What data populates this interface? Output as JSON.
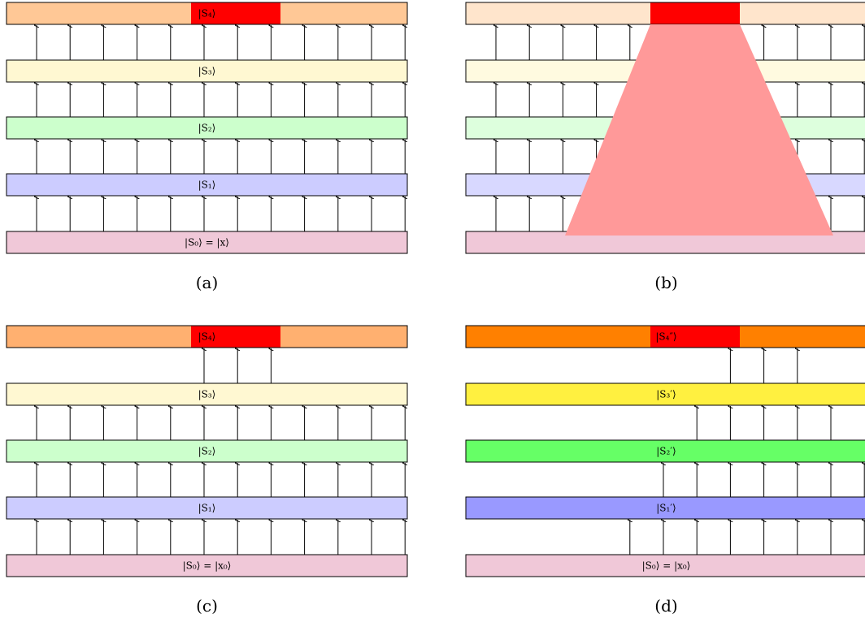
{
  "panels": [
    {
      "id": "a",
      "caption": "(a)",
      "layers": [
        {
          "label": "|S₄⟩",
          "fill": "#FFC896",
          "highlight": true
        },
        {
          "label": "|S₃⟩",
          "fill": "#FFF8D2"
        },
        {
          "label": "|S₂⟩",
          "fill": "#CCFFCC"
        },
        {
          "label": "|S₁⟩",
          "fill": "#CCCCFF"
        },
        {
          "label": "|S₀⟩ = |x⟩",
          "fill": "#F0C8D8"
        }
      ],
      "arrows": [
        [
          0,
          1,
          2,
          3,
          4,
          5,
          6,
          7,
          8,
          9,
          10,
          11
        ],
        [
          0,
          1,
          2,
          3,
          4,
          5,
          6,
          7,
          8,
          9,
          10,
          11
        ],
        [
          0,
          1,
          2,
          3,
          4,
          5,
          6,
          7,
          8,
          9,
          10,
          11
        ],
        [
          0,
          1,
          2,
          3,
          4,
          5,
          6,
          7,
          8,
          9,
          10,
          11
        ]
      ]
    },
    {
      "id": "b",
      "caption": "(b)",
      "layers": [
        {
          "label": "",
          "fill": "#FFE5CC",
          "highlight": true
        },
        {
          "label": "",
          "fill": "#FFFAE0"
        },
        {
          "label": "",
          "fill": "#DDFFDD"
        },
        {
          "label": "",
          "fill": "#D8D8FF"
        },
        {
          "label": "",
          "fill": "#F0C8D8"
        }
      ],
      "arrows": [
        [
          0,
          1,
          2,
          3,
          4,
          5,
          6,
          7,
          8,
          9,
          10,
          11
        ],
        [
          0,
          1,
          2,
          3,
          4,
          5,
          6,
          7,
          8,
          9,
          10,
          11
        ],
        [
          0,
          1,
          2,
          3,
          4,
          5,
          6,
          7,
          8,
          9,
          10,
          11
        ],
        [
          0,
          1,
          2,
          3,
          4,
          5,
          6,
          7,
          8,
          9,
          10,
          11
        ]
      ],
      "cone": true
    },
    {
      "id": "c",
      "caption": "(c)",
      "layers": [
        {
          "label": "|S₄⟩",
          "fill": "#FFB070",
          "highlight": true
        },
        {
          "label": "|S₃⟩",
          "fill": "#FFF8D2"
        },
        {
          "label": "|S₂⟩",
          "fill": "#CCFFCC"
        },
        {
          "label": "|S₁⟩",
          "fill": "#CCCCFF"
        },
        {
          "label": "|S₀⟩ = |x₀⟩",
          "fill": "#F0C8D8"
        }
      ],
      "arrows": [
        [
          5,
          6,
          7
        ],
        [
          0,
          1,
          2,
          3,
          4,
          5,
          6,
          7,
          8,
          9,
          10,
          11
        ],
        [
          0,
          1,
          2,
          3,
          4,
          5,
          6,
          7,
          8,
          9,
          10,
          11
        ],
        [
          0,
          1,
          2,
          3,
          4,
          5,
          6,
          7,
          8,
          9,
          10,
          11
        ]
      ]
    },
    {
      "id": "d",
      "caption": "(d)",
      "layers": [
        {
          "label": "|S₄″⟩",
          "fill": "#FF8000",
          "highlight": true
        },
        {
          "label": "|S₃′⟩",
          "fill": "#FFF040"
        },
        {
          "label": "|S₂′⟩",
          "fill": "#66FF66"
        },
        {
          "label": "|S₁′⟩",
          "fill": "#9999FF"
        },
        {
          "label": "|S₀⟩ = |x₀⟩",
          "fill": "#F0C8D8"
        }
      ],
      "arrows": [
        [
          7,
          8,
          9
        ],
        [
          6,
          7,
          8,
          9,
          10
        ],
        [
          5,
          6,
          7,
          8,
          9,
          10,
          11
        ],
        [
          4,
          5,
          6,
          7,
          8,
          9,
          10,
          11
        ]
      ]
    }
  ],
  "colors": {
    "highlight": "#FF0000",
    "cone": "#FF9999"
  }
}
